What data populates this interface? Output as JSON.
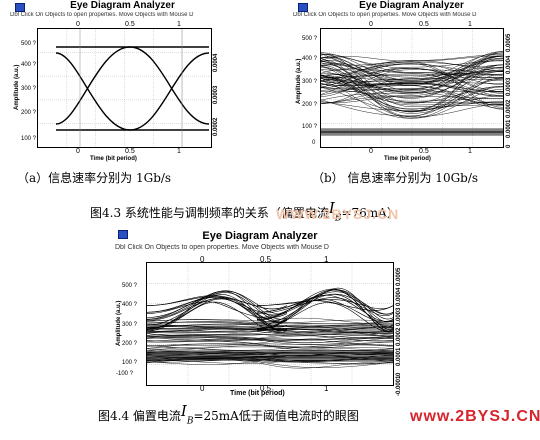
{
  "windows": [
    {
      "id": "a",
      "title": "Eye Diagram Analyzer",
      "hint": "Dbl Click On Objects to open properties.  Move Objects with Mouse D",
      "x_ticks": [
        "0",
        "0.5",
        "1"
      ],
      "x_label": "Time (bit period)",
      "y_label": "Amplitude (a.u.)",
      "y_ticks_left": [
        "500 ?",
        "400 ?",
        "300 ?",
        "200 ?",
        "100 ?"
      ],
      "y_ticks_right": [
        "0.0004",
        "0.0003",
        "0.0002"
      ]
    },
    {
      "id": "b",
      "title": "Eye Diagram Analyzer",
      "hint": "Dbl Click On Objects to open properties.  Move Objects with Mouse D",
      "x_ticks": [
        "0",
        "0.5",
        "1"
      ],
      "x_label": "Time (bit period)",
      "y_label": "Amplitude (a.u.)",
      "y_ticks_left": [
        "500 ?",
        "400 ?",
        "300 ?",
        "200 ?",
        "100 ?",
        "0"
      ],
      "y_ticks_right": [
        "0.0005",
        "0.0004",
        "0.0003",
        "0.0002",
        "0.0001",
        "0"
      ]
    },
    {
      "id": "c",
      "title": "Eye Diagram Analyzer",
      "hint": "Dbl Click On Objects to open properties.  Move Objects with Mouse D",
      "x_ticks": [
        "0",
        "0.5",
        "1"
      ],
      "x_label": "Time (bit period)",
      "y_label": "Amplitude (a.u.)",
      "y_ticks_left": [
        "500 ?",
        "400 ?",
        "300 ?",
        "200 ?",
        "100 ?",
        "-100 ?"
      ],
      "y_ticks_right": [
        "0.0005",
        "0.0004",
        "0.0003",
        "0.0002",
        "0.0001",
        "0",
        "-0.0001"
      ]
    }
  ],
  "captions": {
    "sub_a": "（a）信息速率分别为 1Gb/s",
    "sub_b": "（b） 信息速率分别为 10Gb/s",
    "fig43_pre": "图4.3    系统性能与调制频率的关系（偏置电流",
    "fig43_sym": "I",
    "fig43_sub": "B",
    "fig43_post": "=76mA）",
    "fig44_pre": "图4.4  偏置电流",
    "fig44_sym": "I",
    "fig44_sub": "B",
    "fig44_post": "=25mA低于阈值电流时的眼图"
  },
  "watermarks": {
    "center": "WWW.2BYSJ.CN",
    "corner": "www.2BYSJ.CN"
  },
  "colors": {
    "trace": "#000000",
    "grid": "#c8c8c8",
    "watermark_light": "#f2c4a8",
    "watermark_red": "#d8242c",
    "icon": "#2a4fbf"
  }
}
